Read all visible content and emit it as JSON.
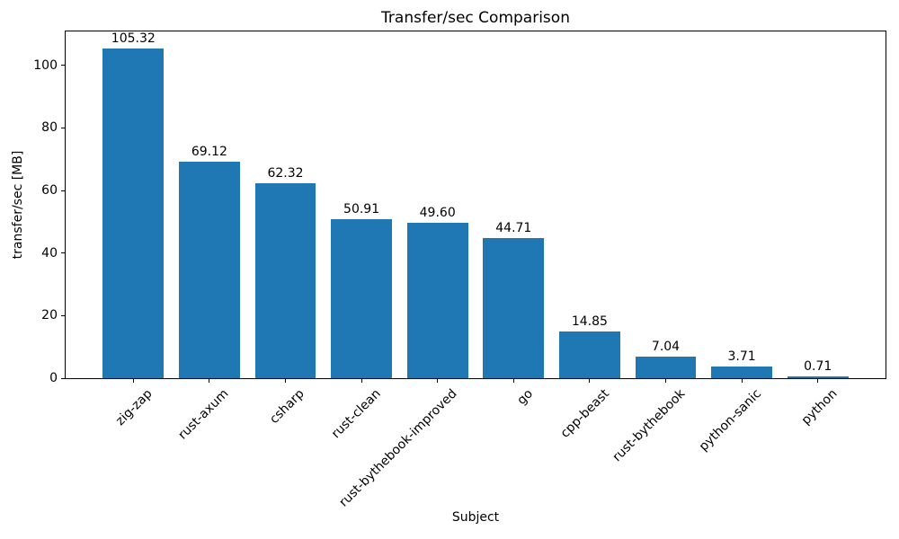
{
  "chart_data": {
    "type": "bar",
    "title": "Transfer/sec Comparison",
    "xlabel": "Subject",
    "ylabel": "transfer/sec [MB]",
    "categories": [
      "zig-zap",
      "rust-axum",
      "csharp",
      "rust-clean",
      "rust-bythebook-improved",
      "go",
      "cpp-beast",
      "rust-bythebook",
      "python-sanic",
      "python"
    ],
    "values": [
      105.32,
      69.12,
      62.32,
      50.91,
      49.6,
      44.71,
      14.85,
      7.04,
      3.71,
      0.71
    ],
    "bar_labels": [
      "105.32",
      "69.12",
      "62.32",
      "50.91",
      "49.60",
      "44.71",
      "14.85",
      "7.04",
      "3.71",
      "0.71"
    ],
    "yticks": [
      0,
      20,
      40,
      60,
      80,
      100
    ],
    "ylim": [
      0,
      110.86
    ],
    "grid": false,
    "bar_color": "#1f77b4",
    "background_color": "#ffffff",
    "text_color": "#000000"
  }
}
